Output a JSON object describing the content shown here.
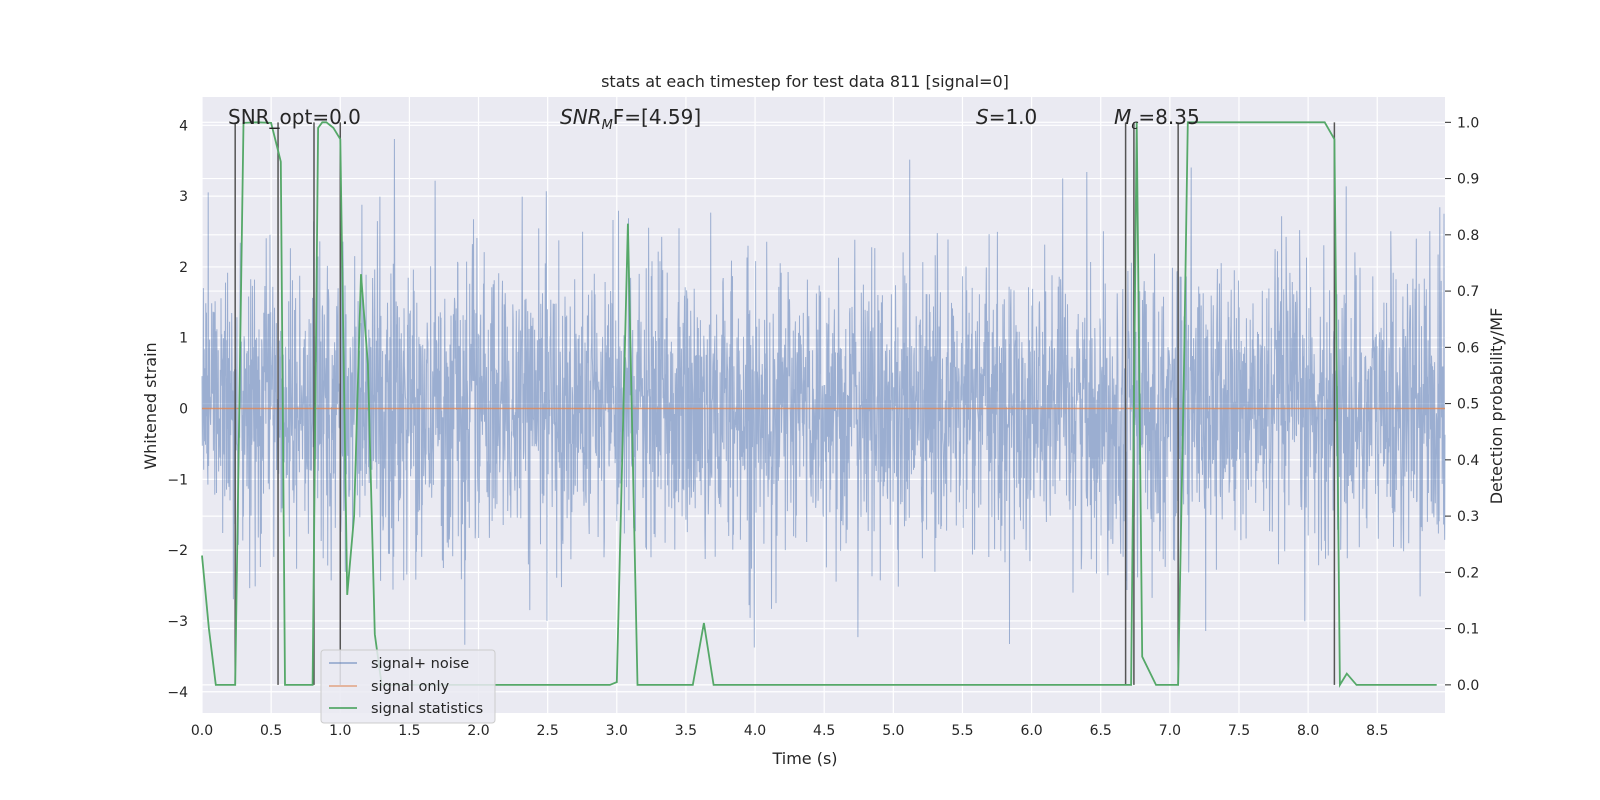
{
  "chart_data": {
    "type": "line",
    "title": "stats at each timestep for test data 811 [signal=0]",
    "xlabel": "Time (s)",
    "ylabel_left": "Whitened strain",
    "ylabel_right": "Detection probability/MF",
    "xlim": [
      0.0,
      8.99
    ],
    "ylim_left": [
      -4.3,
      4.4
    ],
    "ylim_right": [
      -0.05,
      1.045
    ],
    "xticks": [
      "0.0",
      "0.5",
      "1.0",
      "1.5",
      "2.0",
      "2.5",
      "3.0",
      "3.5",
      "4.0",
      "4.5",
      "5.0",
      "5.5",
      "6.0",
      "6.5",
      "7.0",
      "7.5",
      "8.0",
      "8.5"
    ],
    "yticks_left": [
      "−4",
      "−3",
      "−2",
      "−1",
      "0",
      "1",
      "2",
      "3",
      "4"
    ],
    "yticks_right": [
      "0.0",
      "0.1",
      "0.2",
      "0.3",
      "0.4",
      "0.5",
      "0.6",
      "0.7",
      "0.8",
      "0.9",
      "1.0"
    ],
    "grid": true,
    "legend_position": "lower-left",
    "annotations": {
      "snr_opt": "SNR_opt=0.0",
      "snr_mf_base": "SNR",
      "snr_mf_sub": "M",
      "snr_mf_rest": "F=[4.59]",
      "s_base": "S",
      "s_rest": "=1.0",
      "mc_base": "M",
      "mc_sub": "c",
      "mc_rest": "=8.35"
    },
    "series": [
      {
        "name": "signal+ noise",
        "color": "#4c72b0",
        "description": "whitened noisy strain, approx. gaussian with unit variance, extremes about ±4",
        "amplitude_range": [
          -4.0,
          4.0
        ]
      },
      {
        "name": "signal only",
        "color": "#dd8452",
        "x": [
          0.0,
          8.99
        ],
        "y": [
          0.0,
          0.0
        ]
      },
      {
        "name": "signal statistics",
        "color": "#55a868",
        "axis": "right",
        "x": [
          0.0,
          0.05,
          0.1,
          0.15,
          0.24,
          0.3,
          0.4,
          0.5,
          0.55,
          0.57,
          0.6,
          0.62,
          0.7,
          0.8,
          0.84,
          0.87,
          0.9,
          0.95,
          1.0,
          1.05,
          1.1,
          1.15,
          1.2,
          1.25,
          1.3,
          1.4,
          1.5,
          2.0,
          2.5,
          2.95,
          3.0,
          3.08,
          3.15,
          3.2,
          3.3,
          3.4,
          3.55,
          3.63,
          3.7,
          3.75,
          3.85,
          4.0,
          5.0,
          6.0,
          6.5,
          6.62,
          6.68,
          6.72,
          6.76,
          6.8,
          6.9,
          7.0,
          7.06,
          7.1,
          7.13,
          7.2,
          7.5,
          8.0,
          8.12,
          8.19,
          8.23,
          8.28,
          8.35,
          8.5,
          8.93
        ],
        "y": [
          0.23,
          0.1,
          0.0,
          0.0,
          0.0,
          0.999,
          1.0,
          0.999,
          0.95,
          0.93,
          0.0,
          0.0,
          0.0,
          0.0,
          0.99,
          1.0,
          1.0,
          0.99,
          0.97,
          0.16,
          0.3,
          0.73,
          0.57,
          0.09,
          0.0,
          0.0,
          0.0,
          0.0,
          0.0,
          0.0,
          0.005,
          0.82,
          0.0,
          0.0,
          0.0,
          0.0,
          0.0,
          0.11,
          0.0,
          0.0,
          0.0,
          0.0,
          0.0,
          0.0,
          0.0,
          0.0,
          0.0,
          0.0,
          1.0,
          0.05,
          0.0,
          0.0,
          0.0,
          0.53,
          1.0,
          1.0,
          1.0,
          1.0,
          1.0,
          0.97,
          0.0,
          0.02,
          0.0,
          0.0,
          0.0
        ]
      }
    ],
    "event_markers": {
      "description": "grey vertical marker lines bounding detection intervals",
      "color": "#555555",
      "x": [
        0.24,
        0.55,
        0.81,
        1.0,
        6.68,
        6.74,
        7.06,
        8.19
      ]
    }
  }
}
